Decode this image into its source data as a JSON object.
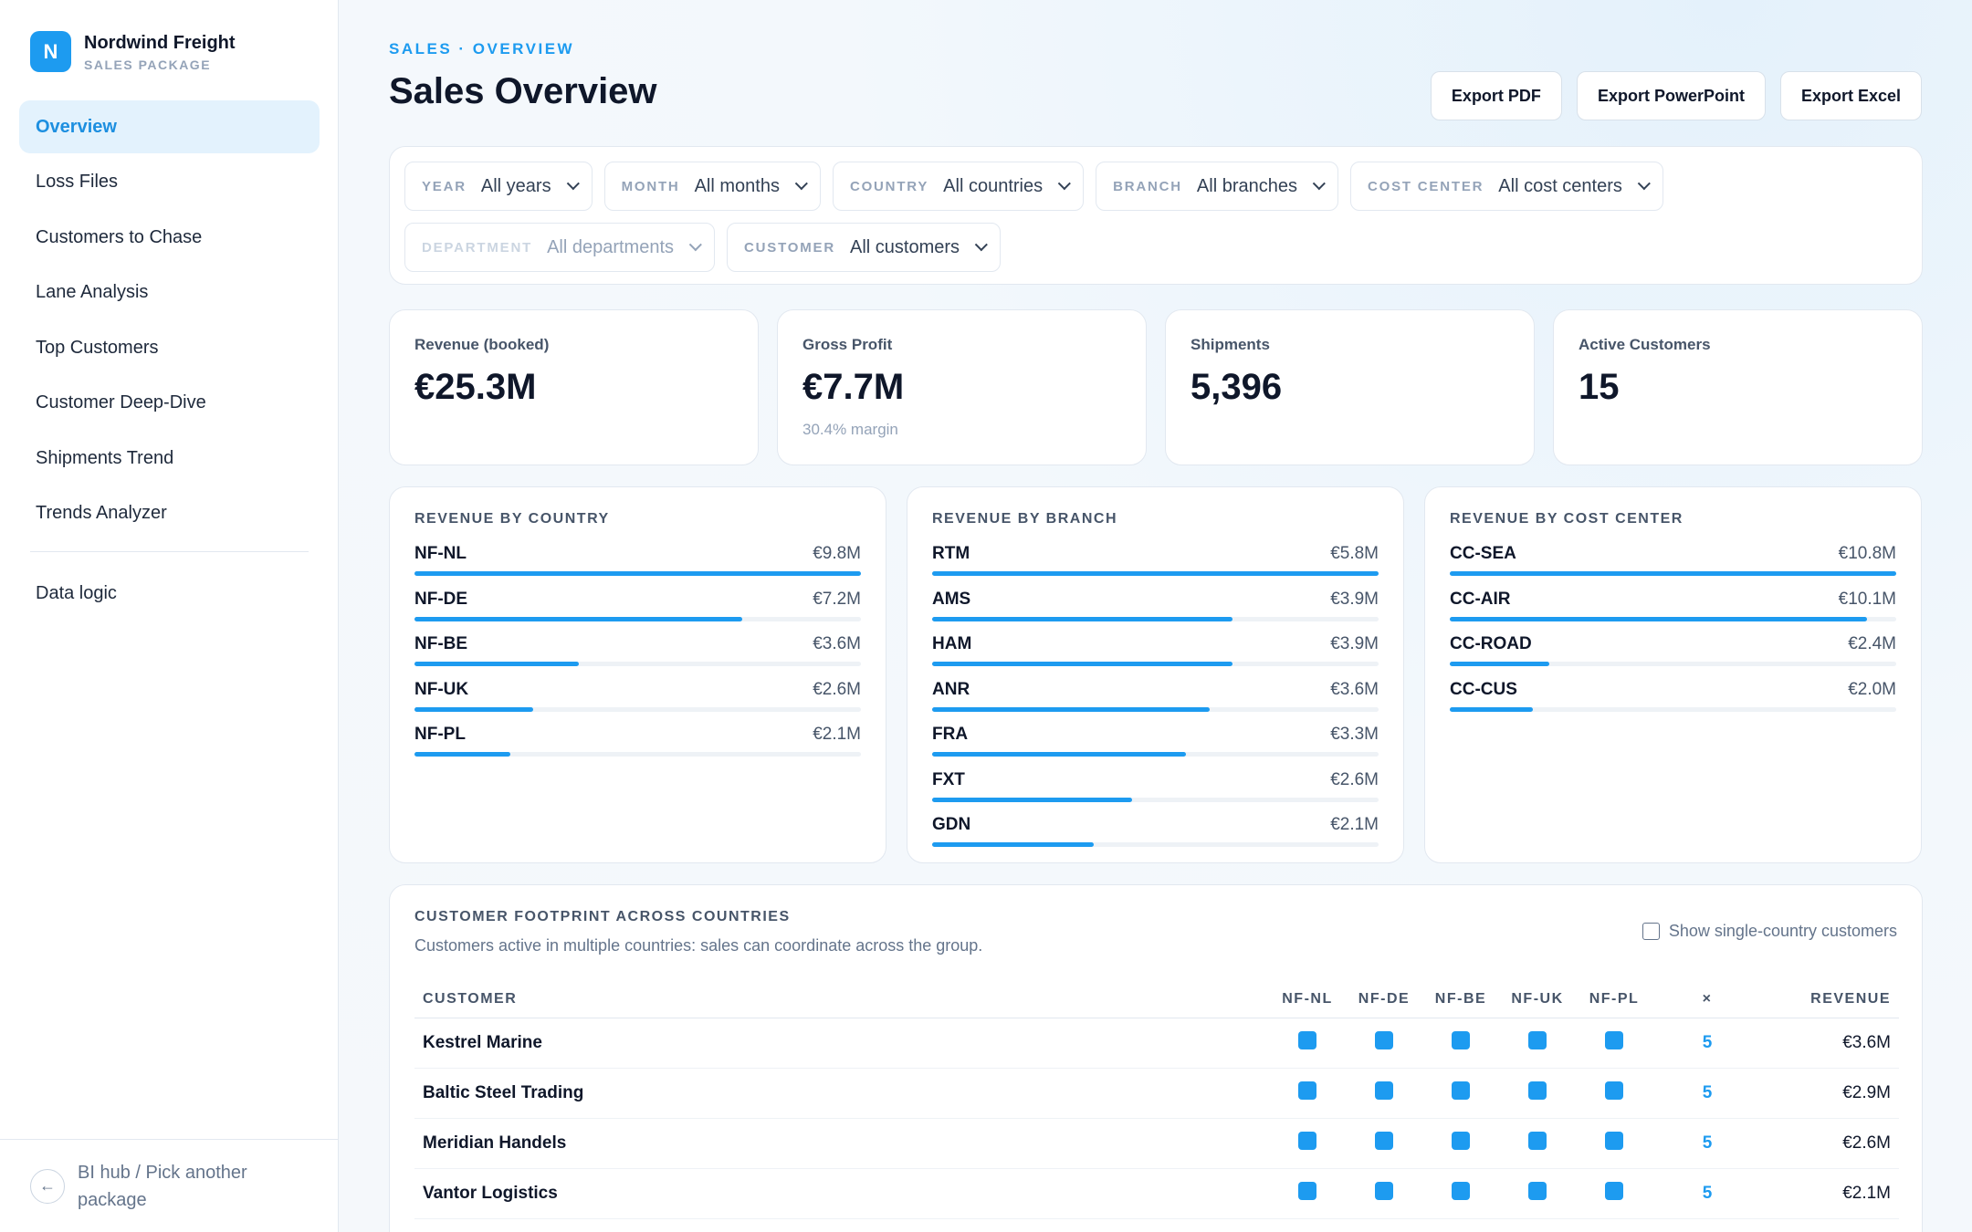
{
  "brand": {
    "logo_letter": "N",
    "name": "Nordwind Freight",
    "subtitle": "SALES PACKAGE"
  },
  "nav": {
    "items": [
      {
        "label": "Overview",
        "active": true
      },
      {
        "label": "Loss Files"
      },
      {
        "label": "Customers to Chase"
      },
      {
        "label": "Lane Analysis"
      },
      {
        "label": "Top Customers"
      },
      {
        "label": "Customer Deep-Dive"
      },
      {
        "label": "Shipments Trend"
      },
      {
        "label": "Trends Analyzer"
      }
    ],
    "extra": {
      "label": "Data logic"
    },
    "footer": {
      "label": "BI hub / Pick another package",
      "icon": "arrow-left-icon"
    }
  },
  "header": {
    "breadcrumb": "SALES · OVERVIEW",
    "title": "Sales Overview",
    "exports": [
      "Export PDF",
      "Export PowerPoint",
      "Export Excel"
    ]
  },
  "filters": [
    {
      "label": "YEAR",
      "value": "All years"
    },
    {
      "label": "MONTH",
      "value": "All months"
    },
    {
      "label": "COUNTRY",
      "value": "All countries"
    },
    {
      "label": "BRANCH",
      "value": "All branches"
    },
    {
      "label": "COST CENTER",
      "value": "All cost centers"
    },
    {
      "label": "DEPARTMENT",
      "value": "All departments",
      "disabled": true
    },
    {
      "label": "CUSTOMER",
      "value": "All customers"
    }
  ],
  "kpis": [
    {
      "label": "Revenue (booked)",
      "value": "€25.3M",
      "note": ""
    },
    {
      "label": "Gross Profit",
      "value": "€7.7M",
      "note": "30.4% margin"
    },
    {
      "label": "Shipments",
      "value": "5,396",
      "note": ""
    },
    {
      "label": "Active Customers",
      "value": "15",
      "note": ""
    }
  ],
  "revenue_panels": [
    {
      "title": "REVENUE BY COUNTRY",
      "rows": [
        {
          "name": "NF-NL",
          "value_label": "€9.8M",
          "value": 9.8
        },
        {
          "name": "NF-DE",
          "value_label": "€7.2M",
          "value": 7.2
        },
        {
          "name": "NF-BE",
          "value_label": "€3.6M",
          "value": 3.6
        },
        {
          "name": "NF-UK",
          "value_label": "€2.6M",
          "value": 2.6
        },
        {
          "name": "NF-PL",
          "value_label": "€2.1M",
          "value": 2.1
        }
      ]
    },
    {
      "title": "REVENUE BY BRANCH",
      "rows": [
        {
          "name": "RTM",
          "value_label": "€5.8M",
          "value": 5.8
        },
        {
          "name": "AMS",
          "value_label": "€3.9M",
          "value": 3.9
        },
        {
          "name": "HAM",
          "value_label": "€3.9M",
          "value": 3.9
        },
        {
          "name": "ANR",
          "value_label": "€3.6M",
          "value": 3.6
        },
        {
          "name": "FRA",
          "value_label": "€3.3M",
          "value": 3.3
        },
        {
          "name": "FXT",
          "value_label": "€2.6M",
          "value": 2.6
        },
        {
          "name": "GDN",
          "value_label": "€2.1M",
          "value": 2.1
        }
      ]
    },
    {
      "title": "REVENUE BY COST CENTER",
      "rows": [
        {
          "name": "CC-SEA",
          "value_label": "€10.8M",
          "value": 10.8
        },
        {
          "name": "CC-AIR",
          "value_label": "€10.1M",
          "value": 10.1
        },
        {
          "name": "CC-ROAD",
          "value_label": "€2.4M",
          "value": 2.4
        },
        {
          "name": "CC-CUS",
          "value_label": "€2.0M",
          "value": 2.0
        }
      ]
    }
  ],
  "footprint": {
    "title": "CUSTOMER FOOTPRINT ACROSS COUNTRIES",
    "subtitle": "Customers active in multiple countries: sales can coordinate across the group.",
    "toggle_label": "Show single-country customers",
    "columns": {
      "customer": "CUSTOMER",
      "countries": [
        "NF-NL",
        "NF-DE",
        "NF-BE",
        "NF-UK",
        "NF-PL"
      ],
      "count": "×",
      "revenue": "REVENUE"
    },
    "rows": [
      {
        "customer": "Kestrel Marine",
        "presence": [
          true,
          true,
          true,
          true,
          true
        ],
        "count": "5",
        "revenue": "€3.6M"
      },
      {
        "customer": "Baltic Steel Trading",
        "presence": [
          true,
          true,
          true,
          true,
          true
        ],
        "count": "5",
        "revenue": "€2.9M"
      },
      {
        "customer": "Meridian Handels",
        "presence": [
          true,
          true,
          true,
          true,
          true
        ],
        "count": "5",
        "revenue": "€2.6M"
      },
      {
        "customer": "Vantor Logistics",
        "presence": [
          true,
          true,
          true,
          true,
          true
        ],
        "count": "5",
        "revenue": "€2.1M"
      }
    ]
  }
}
